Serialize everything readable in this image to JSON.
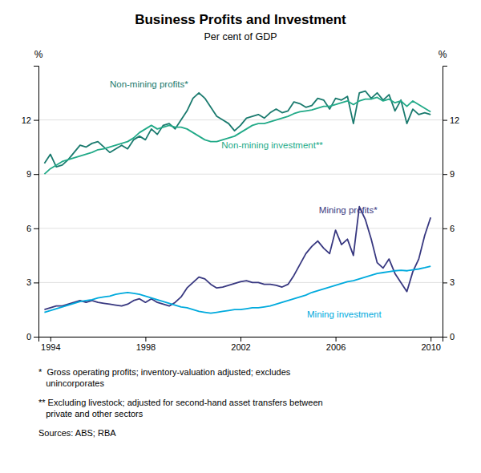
{
  "chart_data": {
    "type": "line",
    "title": "Business Profits and Investment",
    "subtitle": "Per cent of GDP",
    "ylabel": "%",
    "y2label": "%",
    "ylim": [
      0,
      15
    ],
    "yticks": [
      0,
      3,
      6,
      9,
      12
    ],
    "y2lim": [
      0,
      15
    ],
    "y2ticks": [
      0,
      3,
      6,
      9,
      12
    ],
    "xlim": [
      1993.5,
      2010.5
    ],
    "xticks": [
      1994,
      1998,
      2002,
      2006,
      2010
    ],
    "grid": true,
    "x": [
      1993.75,
      1994.0,
      1994.25,
      1994.5,
      1994.75,
      1995.0,
      1995.25,
      1995.5,
      1995.75,
      1996.0,
      1996.25,
      1996.5,
      1996.75,
      1997.0,
      1997.25,
      1997.5,
      1997.75,
      1998.0,
      1998.25,
      1998.5,
      1998.75,
      1999.0,
      1999.25,
      1999.5,
      1999.75,
      2000.0,
      2000.25,
      2000.5,
      2000.75,
      2001.0,
      2001.25,
      2001.5,
      2001.75,
      2002.0,
      2002.25,
      2002.5,
      2002.75,
      2003.0,
      2003.25,
      2003.5,
      2003.75,
      2004.0,
      2004.25,
      2004.5,
      2004.75,
      2005.0,
      2005.25,
      2005.5,
      2005.75,
      2006.0,
      2006.25,
      2006.5,
      2006.75,
      2007.0,
      2007.25,
      2007.5,
      2007.75,
      2008.0,
      2008.25,
      2008.5,
      2008.75,
      2009.0,
      2009.25,
      2009.5,
      2009.75,
      2010.0
    ],
    "series": [
      {
        "name": "Non-mining profits*",
        "color": "#1a7a6e",
        "values": [
          9.6,
          10.1,
          9.4,
          9.5,
          9.8,
          10.2,
          10.6,
          10.5,
          10.7,
          10.8,
          10.5,
          10.2,
          10.4,
          10.6,
          10.4,
          10.9,
          11.1,
          10.9,
          11.5,
          11.2,
          11.7,
          11.8,
          11.5,
          12.0,
          12.5,
          13.2,
          13.5,
          13.2,
          12.7,
          12.2,
          12.0,
          11.8,
          11.4,
          11.7,
          12.1,
          12.2,
          12.3,
          12.1,
          12.4,
          12.6,
          12.4,
          12.5,
          13.0,
          12.9,
          12.7,
          12.8,
          13.2,
          13.1,
          12.6,
          13.2,
          13.1,
          13.3,
          11.8,
          13.5,
          13.6,
          13.2,
          13.5,
          13.1,
          13.4,
          12.5,
          13.1,
          11.8,
          12.6,
          12.3,
          12.4,
          12.3
        ]
      },
      {
        "name": "Non-mining investment**",
        "color": "#22aa88",
        "values": [
          9.0,
          9.3,
          9.5,
          9.7,
          9.8,
          9.9,
          10.0,
          10.1,
          10.2,
          10.35,
          10.4,
          10.5,
          10.6,
          10.7,
          10.8,
          11.0,
          11.3,
          11.5,
          11.7,
          11.5,
          11.6,
          11.7,
          11.6,
          11.6,
          11.5,
          11.3,
          11.1,
          10.9,
          10.8,
          10.8,
          10.9,
          11.0,
          11.1,
          11.3,
          11.5,
          11.7,
          11.8,
          11.8,
          11.9,
          12.0,
          12.1,
          12.2,
          12.35,
          12.45,
          12.5,
          12.55,
          12.65,
          12.75,
          12.75,
          12.85,
          12.95,
          13.05,
          12.85,
          13.05,
          13.15,
          13.15,
          13.25,
          13.05,
          13.15,
          12.95,
          13.05,
          12.75,
          13.05,
          12.85,
          12.65,
          12.45
        ]
      },
      {
        "name": "Mining profits*",
        "color": "#383880",
        "values": [
          1.5,
          1.6,
          1.7,
          1.7,
          1.8,
          1.9,
          2.0,
          1.9,
          2.0,
          1.9,
          1.85,
          1.8,
          1.75,
          1.7,
          1.8,
          2.0,
          2.1,
          1.9,
          2.1,
          1.9,
          1.8,
          1.7,
          1.9,
          2.2,
          2.7,
          3.0,
          3.3,
          3.2,
          2.9,
          2.7,
          2.75,
          2.85,
          2.95,
          3.05,
          3.1,
          3.0,
          3.0,
          2.9,
          2.9,
          2.85,
          2.75,
          2.9,
          3.4,
          4.0,
          4.6,
          5.0,
          5.3,
          4.9,
          4.6,
          5.9,
          5.1,
          5.4,
          4.5,
          7.2,
          6.5,
          5.4,
          4.1,
          3.8,
          4.3,
          3.5,
          3.0,
          2.5,
          3.6,
          4.3,
          5.6,
          6.6
        ]
      },
      {
        "name": "Mining investment",
        "color": "#00aadd",
        "values": [
          1.35,
          1.45,
          1.55,
          1.65,
          1.75,
          1.85,
          1.95,
          2.0,
          2.05,
          2.15,
          2.2,
          2.25,
          2.35,
          2.4,
          2.45,
          2.4,
          2.35,
          2.25,
          2.15,
          2.05,
          1.95,
          1.85,
          1.75,
          1.65,
          1.6,
          1.5,
          1.4,
          1.35,
          1.3,
          1.35,
          1.4,
          1.45,
          1.5,
          1.5,
          1.55,
          1.6,
          1.6,
          1.65,
          1.7,
          1.8,
          1.9,
          2.0,
          2.1,
          2.2,
          2.3,
          2.45,
          2.55,
          2.65,
          2.75,
          2.85,
          2.95,
          3.05,
          3.1,
          3.2,
          3.3,
          3.4,
          3.5,
          3.55,
          3.6,
          3.65,
          3.68,
          3.65,
          3.7,
          3.75,
          3.82,
          3.9
        ]
      }
    ],
    "annotations": [
      {
        "x": 1996.5,
        "y": 13.8,
        "text": "Non-mining profits*",
        "color": "#1a7a6e"
      },
      {
        "x": 2001.2,
        "y": 10.45,
        "text": "Non-mining investment**",
        "color": "#22aa88"
      },
      {
        "x": 2005.3,
        "y": 6.85,
        "text": "Mining profits*",
        "color": "#383880"
      },
      {
        "x": 2004.8,
        "y": 1.05,
        "text": "Mining investment",
        "color": "#00aadd"
      }
    ],
    "footnotes": [
      "*  Gross operating profits; inventory-valuation adjusted; excludes\n   unincorporates",
      "** Excluding livestock; adjusted for second-hand asset transfers between\n   private and other sectors",
      "Sources: ABS; RBA"
    ]
  }
}
